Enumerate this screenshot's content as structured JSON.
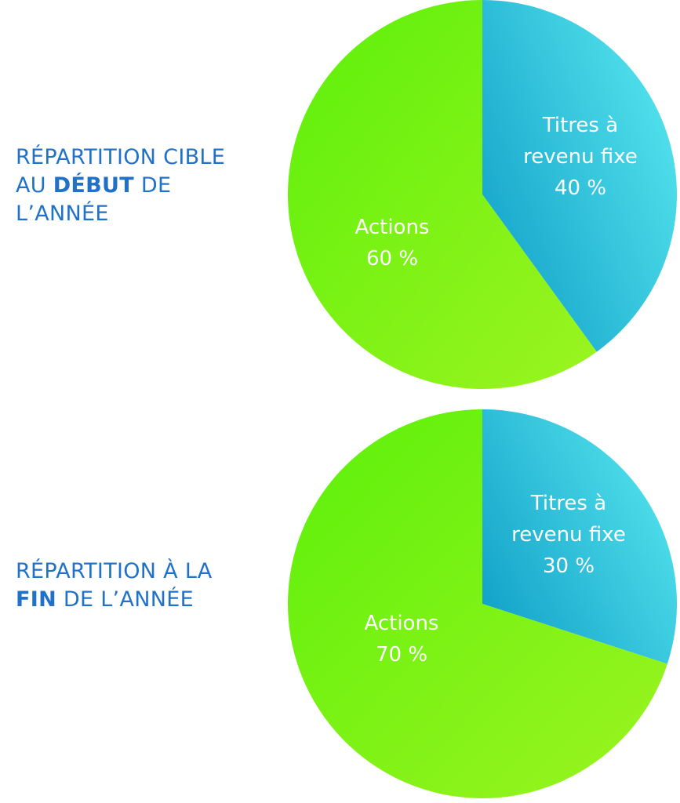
{
  "chart_data": [
    {
      "type": "pie",
      "title_parts": [
        "RÉPARTITION CIBLE",
        "AU ",
        "DÉBUT",
        " DE",
        "L’ANNÉE"
      ],
      "slices": [
        {
          "label_lines": [
            "Titres à",
            "revenu fixe"
          ],
          "value_label": "40 %",
          "value": 40,
          "color_from": "#12a2c9",
          "color_to": "#5ae9f0"
        },
        {
          "label_lines": [
            "Actions"
          ],
          "value_label": "60 %",
          "value": 60,
          "color_from": "#5cf00a",
          "color_to": "#9cf420"
        }
      ]
    },
    {
      "type": "pie",
      "title_parts": [
        "RÉPARTITION À LA",
        "FIN",
        " DE L’ANNÉE"
      ],
      "slices": [
        {
          "label_lines": [
            "Titres à",
            "revenu fixe"
          ],
          "value_label": "30 %",
          "value": 30,
          "color_from": "#12a2c9",
          "color_to": "#5ae9f0"
        },
        {
          "label_lines": [
            "Actions"
          ],
          "value_label": "70 %",
          "value": 70,
          "color_from": "#5cf00a",
          "color_to": "#9cf420"
        }
      ]
    }
  ],
  "colors": {
    "title": "#1f72c8",
    "label": "#ffffff"
  }
}
